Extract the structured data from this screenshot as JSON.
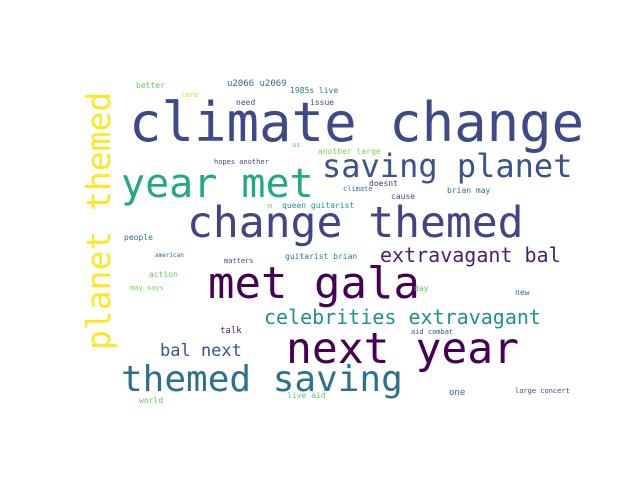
{
  "words": [
    {
      "text": "climate change",
      "color": "#3e4989"
    },
    {
      "text": "year met",
      "color": "#22a884"
    },
    {
      "text": "saving planet",
      "color": "#3b528b"
    },
    {
      "text": "change themed",
      "color": "#414487"
    },
    {
      "text": "planet themed",
      "color": "#fde725"
    },
    {
      "text": "met gala",
      "color": "#440154"
    },
    {
      "text": "extravagant bal",
      "color": "#481f70"
    },
    {
      "text": "celebrities extravagant",
      "color": "#21918c"
    },
    {
      "text": "next year",
      "color": "#440154"
    },
    {
      "text": "bal next",
      "color": "#3b528b"
    },
    {
      "text": "themed saving",
      "color": "#2c728e"
    },
    {
      "text": "better",
      "color": "#5ec962"
    },
    {
      "text": "care",
      "color": "#c8e020"
    },
    {
      "text": "u2066 u2069",
      "color": "#31688e"
    },
    {
      "text": "1985s live",
      "color": "#2a788e"
    },
    {
      "text": "need",
      "color": "#3b528b"
    },
    {
      "text": "issue",
      "color": "#3e4989"
    },
    {
      "text": "us",
      "color": "#5ec962"
    },
    {
      "text": "another large",
      "color": "#7ad151"
    },
    {
      "text": "hopes another",
      "color": "#3e4989"
    },
    {
      "text": "climate",
      "color": "#2a788e"
    },
    {
      "text": "doesnt",
      "color": "#46327e"
    },
    {
      "text": "brian may",
      "color": "#2c728e"
    },
    {
      "text": "cause",
      "color": "#3b528b"
    },
    {
      "text": "m",
      "color": "#7ad151"
    },
    {
      "text": "queen guitarist",
      "color": "#21918c"
    },
    {
      "text": "people",
      "color": "#2c728e"
    },
    {
      "text": "american",
      "color": "#31688e"
    },
    {
      "text": "matters",
      "color": "#3e4989"
    },
    {
      "text": "guitarist brian",
      "color": "#2a788e"
    },
    {
      "text": "action",
      "color": "#5ec962"
    },
    {
      "text": "may says",
      "color": "#7ad151"
    },
    {
      "text": "day",
      "color": "#5ec962"
    },
    {
      "text": "new",
      "color": "#2c728e"
    },
    {
      "text": "talk",
      "color": "#481f70"
    },
    {
      "text": "aid combat",
      "color": "#3b528b"
    },
    {
      "text": "one",
      "color": "#31688e"
    },
    {
      "text": "large concert",
      "color": "#3e4989"
    },
    {
      "text": "world",
      "color": "#5ec962"
    },
    {
      "text": "live aid",
      "color": "#5ec962"
    }
  ]
}
